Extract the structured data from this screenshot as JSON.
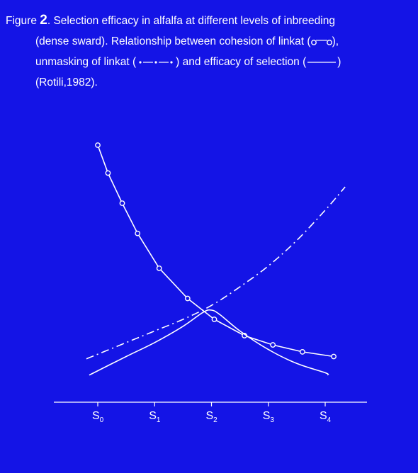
{
  "caption": {
    "figure_word": "Figure",
    "figure_number": "2",
    "line1_rest": ". Selection efficacy in alfalfa at different levels  of inbreeding",
    "line2": "(dense sward). Relationship between cohesion of linkat (",
    "line2_end": "),",
    "line3_a": "unmasking of linkat (",
    "line3_b": ") and efficacy of selection (",
    "line3_c": ")",
    "line4": "(Rotili,1982)."
  },
  "chart_data": {
    "type": "line",
    "title": "",
    "xlabel": "",
    "ylabel": "",
    "x_tick_labels": [
      {
        "main": "S",
        "sub": "0"
      },
      {
        "main": "S",
        "sub": "1"
      },
      {
        "main": "S",
        "sub": "2"
      },
      {
        "main": "S",
        "sub": "3"
      },
      {
        "main": "S",
        "sub": "4"
      }
    ],
    "xlim": [
      -0.2,
      4.7
    ],
    "ylim": [
      0,
      100
    ],
    "y_axis_shown": false,
    "grid": false,
    "series": [
      {
        "style": "line-with-open-circles",
        "x": [
          0,
          0.18,
          0.43,
          0.7,
          1.08,
          1.58,
          2.05,
          2.58,
          3.08,
          3.6,
          4.15
        ],
        "y": [
          100,
          88,
          75,
          62,
          47,
          34,
          25,
          18,
          14,
          11,
          9
        ]
      },
      {
        "style": "dash-dot",
        "x": [
          -0.2,
          0.5,
          1.0,
          1.5,
          2.0,
          2.5,
          3.0,
          3.5,
          4.0,
          4.35
        ],
        "y": [
          8,
          15,
          20,
          25,
          31,
          39,
          48,
          59,
          72,
          82
        ]
      },
      {
        "style": "solid",
        "x": [
          -0.15,
          0.5,
          1.0,
          1.5,
          1.85,
          2.0,
          2.15,
          2.5,
          3.0,
          3.5,
          4.0,
          4.05
        ],
        "y": [
          1,
          9,
          15,
          22,
          28,
          29,
          27,
          20,
          12,
          6,
          2,
          1
        ]
      }
    ]
  }
}
